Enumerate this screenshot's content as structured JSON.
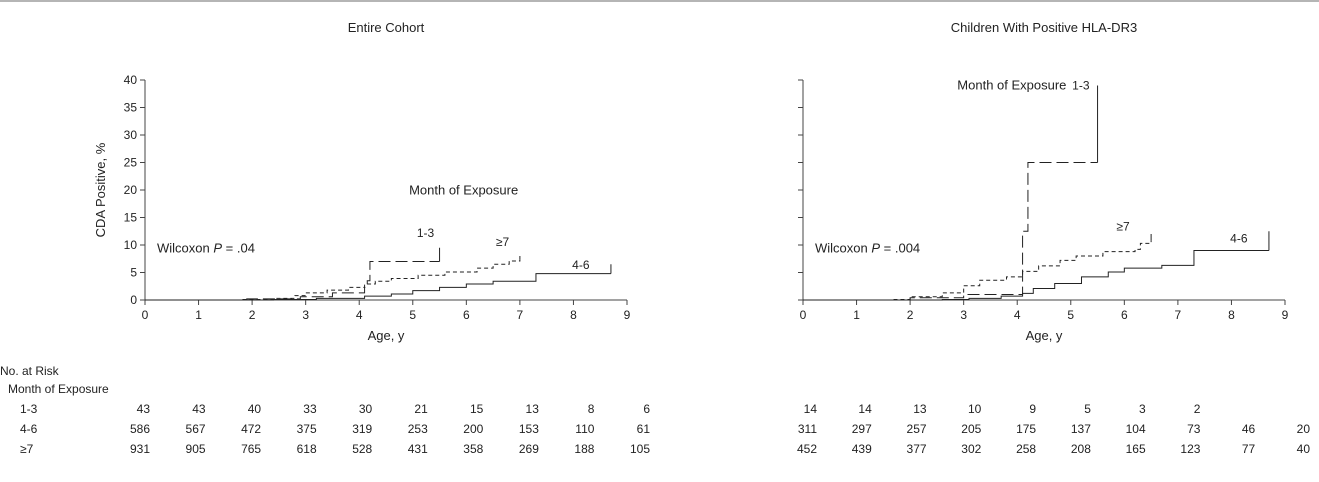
{
  "figure": {
    "at_risk_title": "No. at Risk",
    "at_risk_subtitle": "Month of Exposure",
    "at_risk_groups": [
      "1-3",
      "4-6",
      "≥7"
    ]
  },
  "chart_data": [
    {
      "type": "line",
      "subtype": "step",
      "title": "Entire Cohort",
      "xlabel": "Age, y",
      "ylabel": "CDA Positive, %",
      "xlim": [
        0,
        9
      ],
      "ylim": [
        0,
        40
      ],
      "xticks": [
        0,
        1,
        2,
        3,
        4,
        5,
        6,
        7,
        8,
        9
      ],
      "yticks": [
        0,
        5,
        10,
        15,
        20,
        25,
        30,
        35,
        40
      ],
      "grid": false,
      "annotations": {
        "wilcoxon_prefix": "Wilcoxon ",
        "wilcoxon_p": "P",
        "wilcoxon_value": " = .04",
        "legend_title": "Month of Exposure"
      },
      "series": [
        {
          "name": "1-3",
          "style": "long-dash",
          "points": [
            [
              0,
              0
            ],
            [
              1.9,
              0.2
            ],
            [
              2.9,
              0.6
            ],
            [
              3.5,
              1.3
            ],
            [
              4.1,
              2.3
            ],
            [
              4.15,
              3.5
            ],
            [
              4.2,
              7.0
            ],
            [
              5.5,
              7.0
            ]
          ],
          "end_tick": [
            5.5,
            9.5
          ]
        },
        {
          "name": "4-6",
          "style": "solid",
          "points": [
            [
              0,
              0
            ],
            [
              2.4,
              0.1
            ],
            [
              3.2,
              0.3
            ],
            [
              4.1,
              0.7
            ],
            [
              4.6,
              1.1
            ],
            [
              5.0,
              1.7
            ],
            [
              5.5,
              2.3
            ],
            [
              6.0,
              2.9
            ],
            [
              6.5,
              3.4
            ],
            [
              7.3,
              4.8
            ],
            [
              8.7,
              4.8
            ]
          ],
          "end_tick": [
            8.7,
            6.5
          ]
        },
        {
          "name": "≥7",
          "style": "short-dash",
          "points": [
            [
              0,
              0
            ],
            [
              1.8,
              0.1
            ],
            [
              2.4,
              0.3
            ],
            [
              2.8,
              0.8
            ],
            [
              3.0,
              1.3
            ],
            [
              3.4,
              1.8
            ],
            [
              3.8,
              2.3
            ],
            [
              4.1,
              2.9
            ],
            [
              4.3,
              3.4
            ],
            [
              4.6,
              3.9
            ],
            [
              5.1,
              4.5
            ],
            [
              5.6,
              5.1
            ],
            [
              6.2,
              5.8
            ],
            [
              6.5,
              6.5
            ],
            [
              6.8,
              7.1
            ],
            [
              7.0,
              7.3
            ]
          ],
          "end_tick": [
            7.0,
            8.0
          ]
        }
      ],
      "label_positions": {
        "1-3": [
          5.4,
          11.5
        ],
        "4-6": [
          8.3,
          5.6
        ],
        "≥7": [
          6.8,
          9.8
        ]
      },
      "at_risk": {
        "1-3": [
          43,
          43,
          40,
          33,
          30,
          21,
          15,
          13,
          8,
          6
        ],
        "4-6": [
          586,
          567,
          472,
          375,
          319,
          253,
          200,
          153,
          110,
          61
        ],
        "≥7": [
          931,
          905,
          765,
          618,
          528,
          431,
          358,
          269,
          188,
          105
        ]
      }
    },
    {
      "type": "line",
      "subtype": "step",
      "title": "Children With Positive HLA-DR3",
      "xlabel": "Age, y",
      "ylabel": "",
      "xlim": [
        0,
        9
      ],
      "ylim": [
        0,
        40
      ],
      "xticks": [
        0,
        1,
        2,
        3,
        4,
        5,
        6,
        7,
        8,
        9
      ],
      "yticks": [
        0,
        5,
        10,
        15,
        20,
        25,
        30,
        35,
        40
      ],
      "grid": false,
      "annotations": {
        "wilcoxon_prefix": "Wilcoxon ",
        "wilcoxon_p": "P",
        "wilcoxon_value": " = .004",
        "legend_title": "Month of Exposure"
      },
      "series": [
        {
          "name": "1-3",
          "style": "long-dash",
          "points": [
            [
              0,
              0
            ],
            [
              2.0,
              0.4
            ],
            [
              3.0,
              1.0
            ],
            [
              4.1,
              4.5
            ],
            [
              4.1,
              12.5
            ],
            [
              4.2,
              25.0
            ],
            [
              5.5,
              25.0
            ]
          ],
          "end_tick": [
            5.5,
            39.0
          ]
        },
        {
          "name": "4-6",
          "style": "solid",
          "points": [
            [
              0,
              0
            ],
            [
              2.6,
              0.1
            ],
            [
              3.1,
              0.3
            ],
            [
              3.7,
              0.7
            ],
            [
              4.1,
              1.2
            ],
            [
              4.3,
              2.1
            ],
            [
              4.7,
              3.0
            ],
            [
              5.2,
              4.2
            ],
            [
              5.7,
              5.1
            ],
            [
              6.0,
              5.8
            ],
            [
              6.7,
              6.3
            ],
            [
              7.3,
              9.0
            ],
            [
              8.7,
              9.0
            ]
          ],
          "end_tick": [
            8.7,
            12.5
          ]
        },
        {
          "name": "≥7",
          "style": "short-dash",
          "points": [
            [
              0,
              0
            ],
            [
              1.7,
              0.1
            ],
            [
              2.0,
              0.6
            ],
            [
              2.6,
              1.3
            ],
            [
              3.0,
              2.6
            ],
            [
              3.3,
              3.6
            ],
            [
              3.8,
              4.2
            ],
            [
              4.1,
              5.2
            ],
            [
              4.4,
              6.2
            ],
            [
              4.8,
              7.2
            ],
            [
              5.1,
              8.0
            ],
            [
              5.6,
              8.8
            ],
            [
              6.2,
              9.2
            ],
            [
              6.3,
              10.3
            ],
            [
              6.5,
              10.8
            ]
          ],
          "end_tick": [
            6.5,
            12.0
          ]
        }
      ],
      "label_positions": {
        "1-3": [
          5.35,
          38.3
        ],
        "4-6": [
          8.3,
          10.5
        ],
        "≥7": [
          6.1,
          12.6
        ]
      },
      "at_risk": {
        "1-3": [
          14,
          14,
          13,
          10,
          9,
          5,
          3,
          2,
          null,
          null
        ],
        "4-6": [
          311,
          297,
          257,
          205,
          175,
          137,
          104,
          73,
          46,
          20
        ],
        "≥7": [
          452,
          439,
          377,
          302,
          258,
          208,
          165,
          123,
          77,
          40
        ]
      }
    }
  ]
}
